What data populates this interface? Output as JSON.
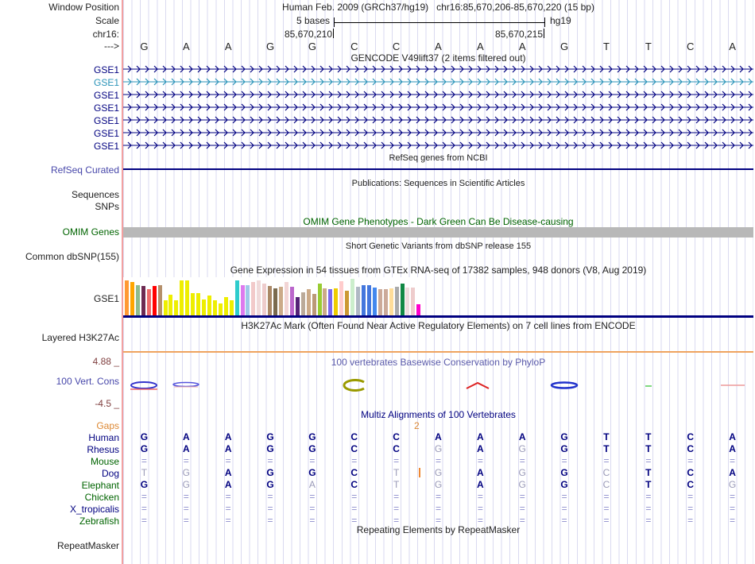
{
  "header": {
    "window_position_label": "Window Position",
    "title": "Human Feb. 2009 (GRCh37/hg19)   chr16:85,670,206-85,670,220 (15 bp)",
    "scale_label": "Scale",
    "scale_value": "5 bases",
    "assembly": "hg19",
    "chrom_label": "chr16:",
    "tick_left": "85,670,210",
    "tick_right": "85,670,215",
    "strand_label": "--->",
    "sequence": [
      "G",
      "A",
      "A",
      "G",
      "G",
      "C",
      "C",
      "A",
      "A",
      "A",
      "G",
      "T",
      "T",
      "C",
      "A"
    ]
  },
  "tracks": {
    "gencode_title": "GENCODE V49lift37 (2 items filtered out)",
    "gse1_rows": [
      {
        "label": "GSE1",
        "color": "#000080"
      },
      {
        "label": "GSE1",
        "color": "#2a93b8"
      },
      {
        "label": "GSE1",
        "color": "#000080"
      },
      {
        "label": "GSE1",
        "color": "#000080"
      },
      {
        "label": "GSE1",
        "color": "#000080"
      },
      {
        "label": "GSE1",
        "color": "#000080"
      },
      {
        "label": "GSE1",
        "color": "#000080"
      }
    ],
    "refseq_center": "RefSeq genes from NCBI",
    "refseq_label": "RefSeq Curated",
    "publications_center": "Publications: Sequences in Scientific Articles",
    "sequences_label": "Sequences",
    "snps_label": "SNPs",
    "omim_center": "OMIM Gene Phenotypes - Dark Green Can Be Disease-causing",
    "omim_label": "OMIM Genes",
    "dbsnp_center": "Short Genetic Variants from dbSNP release 155",
    "dbsnp_label": "Common dbSNP(155)",
    "gtex_title": "Gene Expression in 54 tissues from GTEx RNA-seq of 17382 samples, 948 donors (V8, Aug 2019)",
    "gtex_label": "GSE1",
    "h3k27ac_center": "H3K27Ac Mark (Often Found Near Active Regulatory Elements) on 7 cell lines from ENCODE",
    "h3k27ac_label": "Layered H3K27Ac",
    "phylop_center": "100 vertebrates Basewise Conservation by PhyloP",
    "phylop_label": "100 Vert. Cons",
    "phylop_max": "4.88 _",
    "phylop_min": "-4.5 _",
    "multiz_center": "Multiz Alignments of 100 Vertebrates",
    "repeat_center": "Repeating Elements by RepeatMasker",
    "repeat_label": "RepeatMasker"
  },
  "phylop_marks": [
    {
      "col": 1,
      "type": "loop_blue_red"
    },
    {
      "col": 2,
      "type": "flat_blue_pink"
    },
    {
      "col": 6,
      "type": "olive_c"
    },
    {
      "col": 9,
      "type": "red_caret"
    },
    {
      "col": 11,
      "type": "blue_loop"
    },
    {
      "col": 13,
      "type": "green_dash"
    },
    {
      "col": 15,
      "type": "red_dash"
    }
  ],
  "alignment": {
    "gaps_label": "Gaps",
    "gap_count": "2",
    "gap_after_col": 7,
    "insertion_species": "Dog",
    "species": [
      {
        "name": "Human",
        "color": "#000080",
        "bases": [
          "G",
          "A",
          "A",
          "G",
          "G",
          "C",
          "C",
          "A",
          "A",
          "A",
          "G",
          "T",
          "T",
          "C",
          "A"
        ]
      },
      {
        "name": "Rhesus",
        "color": "#000080",
        "bases": [
          "G",
          "A",
          "A",
          "G",
          "G",
          "C",
          "C",
          "g",
          "A",
          "g",
          "G",
          "T",
          "T",
          "C",
          "A"
        ]
      },
      {
        "name": "Mouse",
        "color": "#006400",
        "bases": [
          "=",
          "=",
          "=",
          "=",
          "=",
          "=",
          "=",
          "=",
          "=",
          "=",
          "=",
          "=",
          "=",
          "=",
          "="
        ]
      },
      {
        "name": "Dog",
        "color": "#000080",
        "bases": [
          "t",
          "g",
          "A",
          "G",
          "G",
          "C",
          "t",
          "g",
          "A",
          "g",
          "G",
          "c",
          "T",
          "C",
          "A"
        ]
      },
      {
        "name": "Elephant",
        "color": "#006400",
        "bases": [
          "G",
          "g",
          "A",
          "G",
          "a",
          "C",
          "t",
          "g",
          "A",
          "g",
          "G",
          "c",
          "T",
          "C",
          "g"
        ]
      },
      {
        "name": "Chicken",
        "color": "#006400",
        "bases": [
          "=",
          "=",
          "=",
          "=",
          "=",
          "=",
          "=",
          "=",
          "=",
          "=",
          "=",
          "=",
          "=",
          "=",
          "="
        ]
      },
      {
        "name": "X_tropicalis",
        "color": "#000080",
        "bases": [
          "=",
          "=",
          "=",
          "=",
          "=",
          "=",
          "=",
          "=",
          "=",
          "=",
          "=",
          "=",
          "=",
          "=",
          "="
        ]
      },
      {
        "name": "Zebrafish",
        "color": "#006400",
        "bases": [
          "=",
          "=",
          "=",
          "=",
          "=",
          "=",
          "=",
          "=",
          "=",
          "=",
          "=",
          "=",
          "=",
          "=",
          "="
        ]
      }
    ]
  },
  "chart_data": {
    "type": "bar",
    "title": "Gene Expression in 54 tissues from GTEx RNA-seq of 17382 samples, 948 donors (V8, Aug 2019)",
    "gene": "GSE1",
    "n_tissues": 54,
    "ylim": [
      0,
      46
    ],
    "values": [
      44,
      42,
      38,
      37,
      33,
      37,
      38,
      19,
      26,
      19,
      44,
      44,
      28,
      28,
      20,
      25,
      19,
      15,
      23,
      19,
      44,
      38,
      38,
      42,
      44,
      40,
      37,
      34,
      36,
      42,
      36,
      23,
      29,
      33,
      27,
      40,
      34,
      33,
      34,
      43,
      31,
      46,
      36,
      38,
      38,
      35,
      33,
      33,
      34,
      36,
      40,
      35,
      35,
      14
    ],
    "colors": [
      "#ff9933",
      "#ffa500",
      "#8fbc8f",
      "#6e2a52",
      "#ee6a6a",
      "#ff0000",
      "#b5906b",
      "#eeee00",
      "#eeee00",
      "#eeee00",
      "#eeee00",
      "#eeee00",
      "#eeee00",
      "#eeee00",
      "#eeee00",
      "#eeee00",
      "#eeee00",
      "#eeee00",
      "#eeee00",
      "#eeee00",
      "#2ecccc",
      "#dd7aee",
      "#9fc8e8",
      "#f2caca",
      "#f0dada",
      "#eecccc",
      "#aa8866",
      "#7a6a4e",
      "#cbaa88",
      "#f2d5d5",
      "#bb66cc",
      "#552277",
      "#bbaa99",
      "#ccaa88",
      "#bb9977",
      "#99cc33",
      "#ccaa88",
      "#7b68ee",
      "#eecc00",
      "#ffcccc",
      "#cc9933",
      "#cceecc",
      "#b0b8c4",
      "#4477dd",
      "#4477dd",
      "#4488ee",
      "#ccaa99",
      "#ccaa99",
      "#ffdd99",
      "#aaaaaa",
      "#118844",
      "#eedddd",
      "#eecccc",
      "#ff00cc"
    ]
  },
  "colors": {
    "navy": "#000080",
    "teal_track": "#2a93b8",
    "green_label": "#006400",
    "slate_label": "#4747aa",
    "orange_gap": "#dd8833",
    "score_maroon": "#804040",
    "h3k27ac_line": "#efa35f",
    "omim_bar_gray": "#b8b8b8",
    "gridline": "#dadaf0",
    "left_border_pink": "#f2a0a0"
  }
}
